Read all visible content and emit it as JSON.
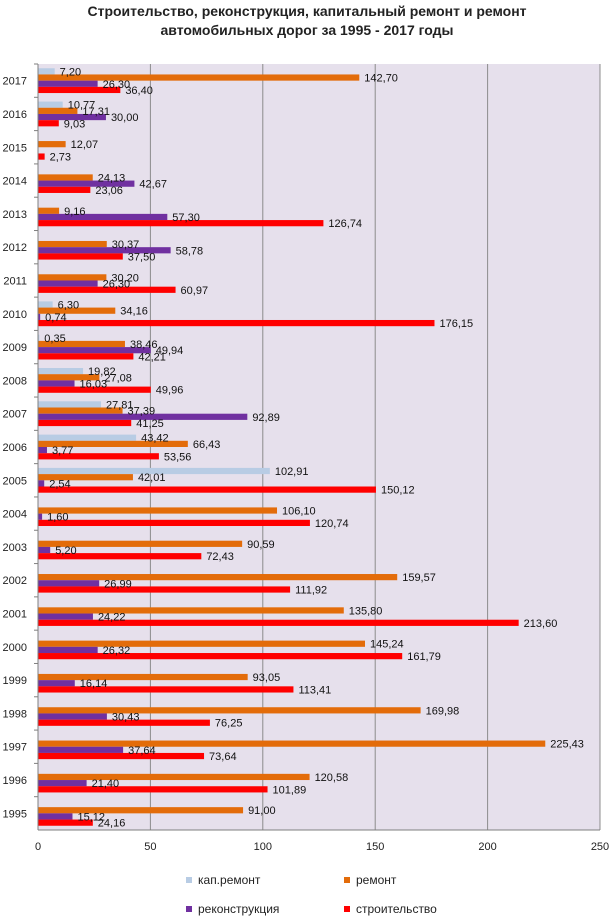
{
  "chart_data": {
    "type": "bar",
    "orientation": "horizontal",
    "title_lines": [
      "Строительство, реконструкция, капитальный ремонт и ремонт",
      "автомобильных дорог за 1995 - 2017 годы"
    ],
    "categories": [
      "1995",
      "1996",
      "1997",
      "1998",
      "1999",
      "2000",
      "2001",
      "2002",
      "2003",
      "2004",
      "2005",
      "2006",
      "2007",
      "2008",
      "2009",
      "2010",
      "2011",
      "2012",
      "2013",
      "2014",
      "2015",
      "2016",
      "2017"
    ],
    "series": [
      {
        "name": "кап.ремонт",
        "color": "#b8cce4",
        "values": [
          null,
          null,
          null,
          null,
          null,
          null,
          null,
          null,
          null,
          null,
          102.91,
          43.42,
          27.81,
          19.82,
          0.35,
          6.3,
          null,
          null,
          null,
          null,
          null,
          10.77,
          7.2
        ],
        "labels": [
          "",
          "",
          "",
          "",
          "",
          "",
          "",
          "",
          "",
          "",
          "102,91",
          "43,42",
          "27,81",
          "19,82",
          "0,35",
          "6,30",
          "",
          "",
          "",
          "",
          "",
          "10,77",
          "7,20"
        ]
      },
      {
        "name": "ремонт",
        "color": "#e36c0a",
        "values": [
          91.0,
          120.58,
          225.43,
          169.98,
          93.05,
          145.24,
          135.8,
          159.57,
          90.59,
          106.1,
          42.01,
          66.43,
          37.39,
          27.08,
          38.46,
          34.16,
          30.2,
          30.37,
          9.16,
          24.13,
          12.07,
          17.31,
          142.7
        ],
        "labels": [
          "91,00",
          "120,58",
          "225,43",
          "169,98",
          "93,05",
          "145,24",
          "135,80",
          "159,57",
          "90,59",
          "106,10",
          "42,01",
          "66,43",
          "37,39",
          "27,08",
          "38,46",
          "34,16",
          "30,20",
          "30,37",
          "9,16",
          "24,13",
          "12,07",
          "17,31",
          "142,70"
        ]
      },
      {
        "name": "реконструкция",
        "color": "#7030a0",
        "values": [
          15.12,
          21.4,
          37.64,
          30.43,
          16.14,
          26.32,
          24.22,
          26.99,
          5.2,
          1.6,
          2.54,
          3.77,
          92.89,
          16.03,
          49.94,
          0.74,
          26.3,
          58.78,
          57.3,
          42.67,
          null,
          30.0,
          26.3
        ],
        "labels": [
          "15,12",
          "21,40",
          "37,64",
          "30,43",
          "16,14",
          "26,32",
          "24,22",
          "26,99",
          "5,20",
          "1,60",
          "2,54",
          "3,77",
          "92,89",
          "16,03",
          "49,94",
          "0,74",
          "26,30",
          "58,78",
          "57,30",
          "42,67",
          "",
          "30,00",
          "26,30"
        ]
      },
      {
        "name": "строительство",
        "color": "#ff0000",
        "values": [
          24.16,
          101.89,
          73.64,
          76.25,
          113.41,
          161.79,
          213.6,
          111.92,
          72.43,
          120.74,
          150.12,
          53.56,
          41.25,
          49.96,
          42.21,
          176.15,
          60.97,
          37.5,
          126.74,
          23.06,
          2.73,
          9.03,
          36.4
        ],
        "labels": [
          "24,16",
          "101,89",
          "73,64",
          "76,25",
          "113,41",
          "161,79",
          "213,60",
          "111,92",
          "72,43",
          "120,74",
          "150,12",
          "53,56",
          "41,25",
          "49,96",
          "42,21",
          "176,15",
          "60,97",
          "37,50",
          "126,74",
          "23,06",
          "2,73",
          "9,03",
          "36,40"
        ]
      }
    ],
    "xlim": [
      0,
      250
    ],
    "xticks": [
      "0",
      "50",
      "100",
      "150",
      "200",
      "250"
    ],
    "grid": true,
    "legend_position": "bottom"
  }
}
